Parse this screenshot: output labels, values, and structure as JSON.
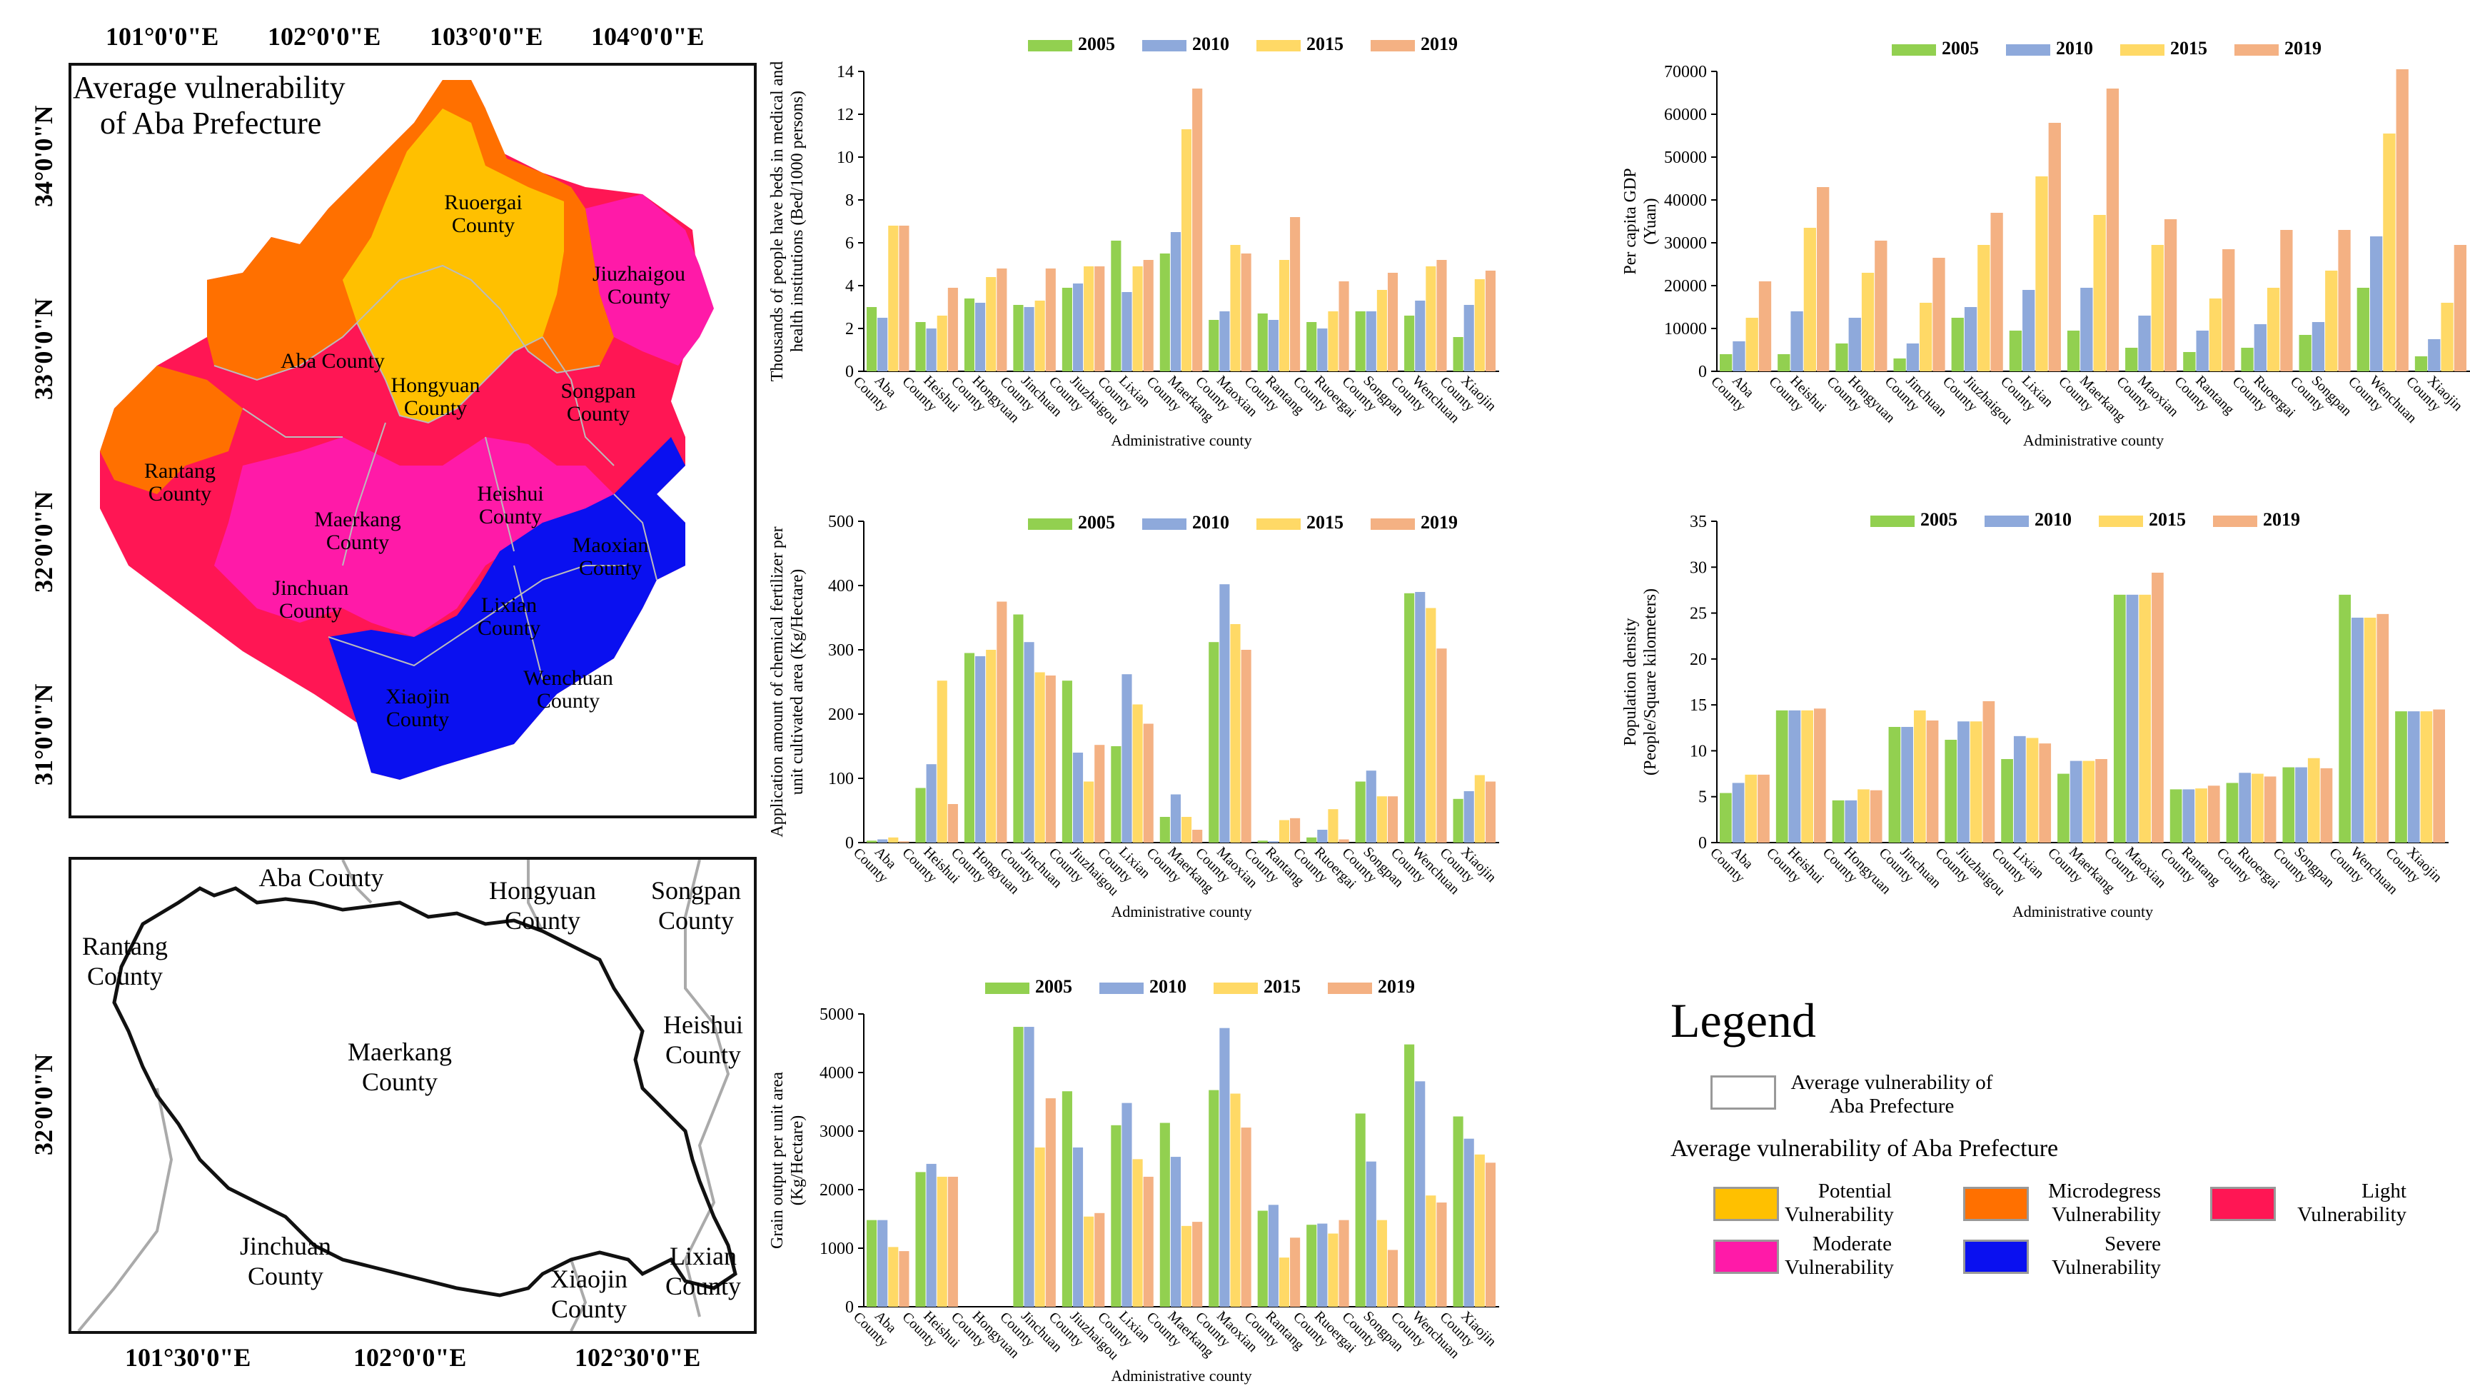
{
  "map_top": {
    "title_line1": "Average vulnerability",
    "title_line2": "of Aba Prefecture",
    "top_coords": [
      "101°0'0\"E",
      "102°0'0\"E",
      "103°0'0\"E",
      "104°0'0\"E"
    ],
    "left_coords": [
      "34°0'0\"N",
      "33°0'0\"N",
      "32°0'0\"N",
      "31°0'0\"N"
    ],
    "counties": {
      "ruoergai": "Ruoergai County",
      "jiuzhaigou": "Jiuzhaigou County",
      "aba": "Aba County",
      "hongyuan": "Hongyuan County",
      "songpan": "Songpan County",
      "rantang": "Rantang County",
      "heishui": "Heishui County",
      "maerkang": "Maerkang County",
      "maoxian": "Maoxian County",
      "jinchuan": "Jinchuan County",
      "lixian": "Lixian County",
      "xiaojin": "Xiaojin County",
      "wenchuan": "Wenchuan County"
    },
    "colors": {
      "potential": "#FFC000",
      "microdegree": "#FF7000",
      "light": "#FF1654",
      "moderate": "#FF1AA8",
      "severe": "#0A10F0"
    }
  },
  "map_bottom": {
    "bottom_coords": [
      "101°30'0\"E",
      "102°0'0\"E",
      "102°30'0\"E"
    ],
    "left_coord": "32°0'0\"N",
    "counties": {
      "aba": "Aba County",
      "hongyuan": "Hongyuan County",
      "songpan": "Songpan County",
      "rantang": "Rantang County",
      "heishui": "Heishui County",
      "maerkang": "Maerkang County",
      "jinchuan": "Jinchuan County",
      "xiaojin": "Xiaojin County",
      "lixian": "Lixian County"
    }
  },
  "legend": {
    "title": "Legend",
    "box_label": "Average vulnerability of Aba Prefecture",
    "subtitle": "Average vulnerability of Aba Prefecture",
    "items": [
      {
        "label": "Potential Vulnerability",
        "color": "#FFC000"
      },
      {
        "label": "Microdegress Vulnerability",
        "color": "#FF7000"
      },
      {
        "label": "Light Vulnerability",
        "color": "#FF1654"
      },
      {
        "label": "Moderate Vulnerability",
        "color": "#FF1AA8"
      },
      {
        "label": "Severe Vulnerability",
        "color": "#0A10F0"
      }
    ]
  },
  "series_colors": {
    "2005": "#92D050",
    "2010": "#8EA9DB",
    "2015": "#FFD966",
    "2019": "#F4B183"
  },
  "chart_data": [
    {
      "type": "bar",
      "id": "beds",
      "categories": [
        "Aba County",
        "Heishui County",
        "Hongyuan County",
        "Jinchuan County",
        "Jiuzhaigou County",
        "Lixian County",
        "Maerkang County",
        "Maoxian County",
        "Rantang County",
        "Ruoergai County",
        "Songpan County",
        "Wenchuan County",
        "Xiaojin County"
      ],
      "series": [
        {
          "name": "2005",
          "values": [
            3.0,
            2.3,
            3.4,
            3.1,
            3.9,
            6.1,
            5.5,
            2.4,
            2.7,
            2.3,
            2.8,
            2.6,
            1.6
          ]
        },
        {
          "name": "2010",
          "values": [
            2.5,
            2.0,
            3.2,
            3.0,
            4.1,
            3.7,
            6.5,
            2.8,
            2.4,
            2.0,
            2.8,
            3.3,
            3.1
          ]
        },
        {
          "name": "2015",
          "values": [
            6.8,
            2.6,
            4.4,
            3.3,
            4.9,
            4.9,
            11.3,
            5.9,
            5.2,
            2.8,
            3.8,
            4.9,
            4.3
          ]
        },
        {
          "name": "2019",
          "values": [
            6.8,
            3.9,
            4.8,
            4.8,
            4.9,
            5.2,
            13.2,
            5.5,
            7.2,
            4.2,
            4.6,
            5.2,
            4.7
          ]
        }
      ],
      "title": "",
      "xlabel": "Administrative county",
      "ylabel": "Thousands of people have beds in medical and health institutions (Bed/1000 persons)",
      "ylim": [
        0,
        14
      ],
      "yticks": [
        0,
        2,
        4,
        6,
        8,
        10,
        12,
        14
      ]
    },
    {
      "type": "bar",
      "id": "gdp",
      "categories": [
        "Aba County",
        "Heishui County",
        "Hongyuan County",
        "Jinchuan County",
        "Jiuzhaigou County",
        "Lixian County",
        "Maerkang County",
        "Maoxian County",
        "Rantang County",
        "Ruoergai County",
        "Songpan County",
        "Wenchuan County",
        "Xiaojin County"
      ],
      "series": [
        {
          "name": "2005",
          "values": [
            4000,
            4000,
            6500,
            3000,
            12500,
            9500,
            9500,
            5500,
            4500,
            5500,
            8500,
            19500,
            3500
          ]
        },
        {
          "name": "2010",
          "values": [
            7000,
            14000,
            12500,
            6500,
            15000,
            19000,
            19500,
            13000,
            9500,
            11000,
            11500,
            31500,
            7500
          ]
        },
        {
          "name": "2015",
          "values": [
            12500,
            33500,
            23000,
            16000,
            29500,
            45500,
            36500,
            29500,
            17000,
            19500,
            23500,
            55500,
            16000
          ]
        },
        {
          "name": "2019",
          "values": [
            21000,
            43000,
            30500,
            26500,
            37000,
            58000,
            66000,
            35500,
            28500,
            33000,
            33000,
            70500,
            29500
          ]
        }
      ],
      "title": "",
      "xlabel": "Administrative county",
      "ylabel": "Per capita GDP (Yuan)",
      "ylim": [
        0,
        70000
      ],
      "yticks": [
        0,
        10000,
        20000,
        30000,
        40000,
        50000,
        60000,
        70000
      ]
    },
    {
      "type": "bar",
      "id": "fertilizer",
      "categories": [
        "Aba County",
        "Heishui County",
        "Hongyuan County",
        "Jinchuan County",
        "Jiuzhaigou County",
        "Lixian County",
        "Maerkang County",
        "Maoxian County",
        "Rantang County",
        "Ruoergai County",
        "Songpan County",
        "Wenchuan County",
        "Xiaojin County"
      ],
      "series": [
        {
          "name": "2005",
          "values": [
            3,
            85,
            295,
            355,
            252,
            150,
            40,
            312,
            3,
            8,
            95,
            388,
            68
          ]
        },
        {
          "name": "2010",
          "values": [
            5,
            122,
            290,
            312,
            140,
            262,
            75,
            402,
            2,
            20,
            112,
            390,
            80
          ]
        },
        {
          "name": "2015",
          "values": [
            8,
            252,
            300,
            265,
            95,
            215,
            40,
            340,
            35,
            52,
            72,
            365,
            105
          ]
        },
        {
          "name": "2019",
          "values": [
            2,
            60,
            375,
            260,
            152,
            185,
            20,
            300,
            38,
            5,
            72,
            302,
            95
          ]
        }
      ],
      "title": "",
      "xlabel": "Administrative county",
      "ylabel": "Application amount of chemical fertilizer per unit cultivated area (Kg/Hectare)",
      "ylim": [
        0,
        500
      ],
      "yticks": [
        0,
        100,
        200,
        300,
        400,
        500
      ]
    },
    {
      "type": "bar",
      "id": "density",
      "categories": [
        "Aba County",
        "Heishui County",
        "Hongyuan County",
        "Jinchuan County",
        "Jiuzhaigou County",
        "Lixian County",
        "Maerkang County",
        "Maoxian County",
        "Rantang County",
        "Ruoergai County",
        "Songpan County",
        "Wenchuan County",
        "Xiaojin County"
      ],
      "series": [
        {
          "name": "2005",
          "values": [
            5.4,
            14.4,
            4.6,
            12.6,
            11.2,
            9.1,
            7.5,
            27.0,
            5.8,
            6.5,
            8.2,
            27.0,
            14.3
          ]
        },
        {
          "name": "2010",
          "values": [
            6.5,
            14.4,
            4.6,
            12.6,
            13.2,
            11.6,
            8.9,
            27.0,
            5.8,
            7.6,
            8.2,
            24.5,
            14.3
          ]
        },
        {
          "name": "2015",
          "values": [
            7.4,
            14.4,
            5.8,
            14.4,
            13.2,
            11.4,
            8.9,
            27.0,
            5.9,
            7.5,
            9.2,
            24.5,
            14.3
          ]
        },
        {
          "name": "2019",
          "values": [
            7.4,
            14.6,
            5.7,
            13.3,
            15.4,
            10.8,
            9.1,
            29.4,
            6.2,
            7.2,
            8.1,
            24.9,
            14.5
          ]
        }
      ],
      "title": "",
      "xlabel": "Administrative county",
      "ylabel": "Population density (People/Square kilometers)",
      "ylim": [
        0,
        35
      ],
      "yticks": [
        0,
        5,
        10,
        15,
        20,
        25,
        30,
        35
      ]
    },
    {
      "type": "bar",
      "id": "grain",
      "categories": [
        "Aba County",
        "Heishui County",
        "Hongyuan County",
        "Jinchuan County",
        "Jiuzhaigou County",
        "Lixian County",
        "Maerkang County",
        "Maoxian County",
        "Rantang County",
        "Ruoergai County",
        "Songpan County",
        "Wenchuan County",
        "Xiaojin County"
      ],
      "series": [
        {
          "name": "2005",
          "values": [
            1480,
            2300,
            0,
            4780,
            3680,
            3100,
            3140,
            3700,
            1640,
            1400,
            3300,
            4480,
            3250
          ]
        },
        {
          "name": "2010",
          "values": [
            1480,
            2440,
            0,
            4780,
            2720,
            3480,
            2560,
            4760,
            1740,
            1420,
            2480,
            3850,
            2870
          ]
        },
        {
          "name": "2015",
          "values": [
            1020,
            2220,
            0,
            2720,
            1540,
            2520,
            1380,
            3640,
            840,
            1250,
            1480,
            1900,
            2600
          ]
        },
        {
          "name": "2019",
          "values": [
            950,
            2220,
            0,
            3560,
            1600,
            2220,
            1450,
            3060,
            1180,
            1480,
            970,
            1780,
            2460
          ]
        }
      ],
      "title": "",
      "xlabel": "Administrative county",
      "ylabel": "Grain output per unit area (Kg/Hectare)",
      "ylim": [
        0,
        5000
      ],
      "yticks": [
        0,
        1000,
        2000,
        3000,
        4000,
        5000
      ]
    }
  ]
}
